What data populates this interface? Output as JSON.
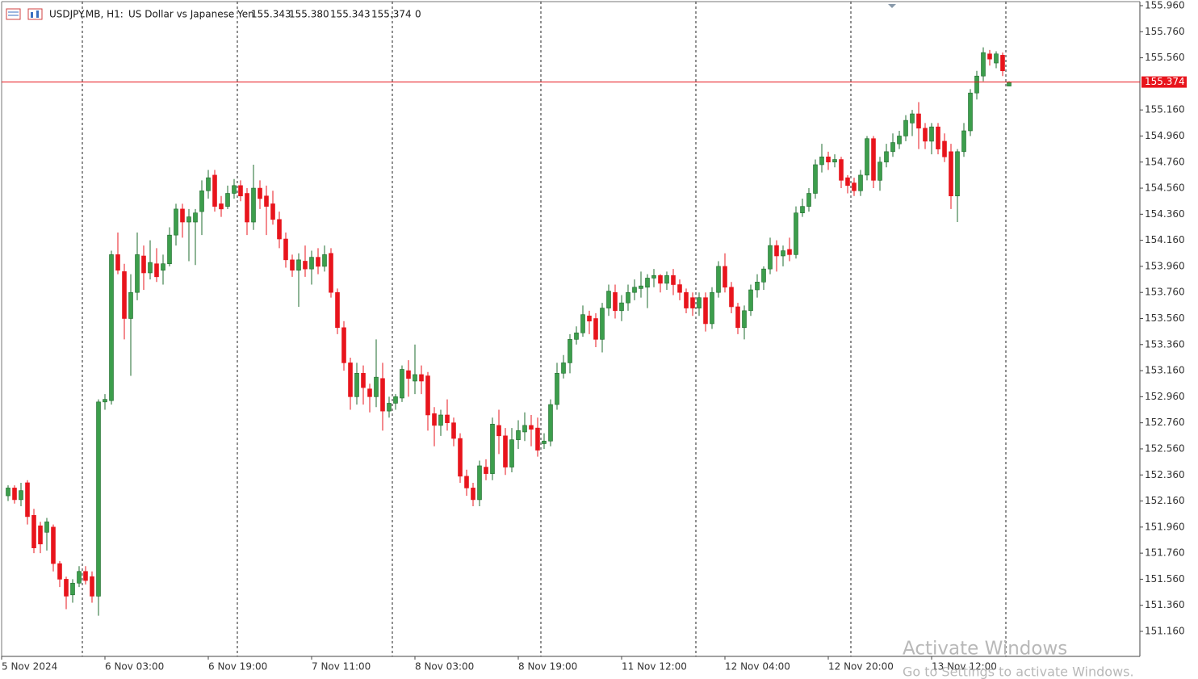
{
  "chart_data": {
    "type": "candlestick",
    "title": "USDJPY.MB, H1:",
    "subtitle": "US Dollar vs Japanese Yen",
    "last_bar_labels": [
      "155.343",
      "155.380",
      "155.343",
      "155.374"
    ],
    "tick_volume": 0,
    "watermark": [
      "Activate Windows",
      "Go to Settings to activate Windows."
    ],
    "up_color": "#3c9e4c",
    "up_edge": "#1e6b2c",
    "down_color": "#e8141c",
    "price_line_color": "#e8141c",
    "categories": [
      "5 Nov 2024",
      null,
      null,
      null,
      null,
      null,
      null,
      null,
      null,
      null,
      null,
      null,
      null,
      null,
      null,
      "6 Nov 03:00",
      null,
      null,
      null,
      null,
      null,
      null,
      null,
      null,
      null,
      null,
      null,
      null,
      null,
      null,
      null,
      "6 Nov 19:00",
      null,
      null,
      null,
      null,
      null,
      null,
      null,
      null,
      null,
      null,
      null,
      null,
      null,
      null,
      null,
      "7 Nov 11:00",
      null,
      null,
      null,
      null,
      null,
      null,
      null,
      null,
      null,
      null,
      null,
      null,
      null,
      null,
      null,
      "8 Nov 03:00",
      null,
      null,
      null,
      null,
      null,
      null,
      null,
      null,
      null,
      null,
      null,
      null,
      null,
      null,
      null,
      "8 Nov 19:00",
      null,
      null,
      null,
      null,
      null,
      null,
      null,
      null,
      null,
      null,
      null,
      null,
      null,
      null,
      null,
      "11 Nov 12:00",
      null,
      null,
      null,
      null,
      null,
      null,
      null,
      null,
      null,
      null,
      null,
      null,
      null,
      null,
      null,
      "12 Nov 04:00",
      null,
      null,
      null,
      null,
      null,
      null,
      null,
      null,
      null,
      null,
      null,
      null,
      null,
      null,
      null,
      "12 Nov 20:00",
      null,
      null,
      null,
      null,
      null,
      null,
      null,
      null,
      null,
      null,
      null,
      null,
      null,
      null,
      null,
      "13 Nov 12:00",
      null,
      null,
      null,
      null,
      null,
      null,
      null,
      null,
      null,
      null,
      null,
      null
    ],
    "open": [
      152.2,
      152.26,
      152.17,
      152.3,
      152.05,
      151.97,
      151.92,
      151.96,
      151.68,
      151.56,
      151.44,
      151.53,
      151.62,
      151.58,
      151.43,
      152.92,
      152.93,
      154.05,
      153.92,
      153.56,
      153.76,
      154.04,
      153.91,
      153.98,
      153.93,
      153.98,
      154.2,
      154.4,
      154.3,
      154.3,
      154.38,
      154.54,
      154.66,
      154.44,
      154.42,
      154.52,
      154.58,
      154.52,
      154.3,
      154.56,
      154.5,
      154.44,
      154.32,
      154.17,
      154.01,
      153.93,
      154.0,
      153.94,
      154.03,
      153.96,
      154.06,
      153.76,
      153.49,
      153.22,
      152.96,
      153.14,
      153.02,
      152.96,
      153.1,
      152.85,
      152.91,
      152.95,
      153.16,
      153.08,
      153.13,
      153.12,
      152.83,
      152.74,
      152.82,
      152.76,
      152.64,
      152.35,
      152.26,
      152.17,
      152.42,
      152.37,
      152.74,
      152.66,
      152.42,
      152.63,
      152.69,
      152.74,
      152.72,
      152.6,
      152.62,
      152.9,
      153.14,
      153.22,
      153.4,
      153.45,
      153.58,
      153.56,
      153.4,
      153.64,
      153.76,
      153.62,
      153.68,
      153.76,
      153.79,
      153.8,
      153.87,
      153.89,
      153.83,
      153.89,
      153.82,
      153.76,
      153.72,
      153.64,
      153.72,
      153.52,
      153.76,
      153.96,
      153.8,
      153.65,
      153.49,
      153.62,
      153.78,
      153.84,
      153.94,
      154.12,
      154.04,
      154.09,
      154.05,
      154.37,
      154.42,
      154.52,
      154.74,
      154.8,
      154.76,
      154.78,
      154.64,
      154.6,
      154.54,
      154.66,
      154.94,
      154.62,
      154.76,
      154.84,
      154.9,
      154.96,
      155.06,
      155.13,
      155.02,
      154.92,
      155.03,
      154.92,
      154.84,
      154.5,
      154.84,
      155.0,
      155.29,
      155.42,
      155.59,
      155.52,
      155.58,
      155.343
    ],
    "high": [
      152.28,
      152.28,
      152.3,
      152.32,
      152.1,
      152.0,
      152.03,
      151.98,
      151.7,
      151.58,
      151.56,
      151.66,
      151.66,
      151.62,
      152.94,
      152.98,
      154.08,
      154.22,
      153.98,
      153.9,
      154.22,
      154.12,
      154.16,
      154.1,
      154.05,
      154.26,
      154.44,
      154.44,
      154.4,
      154.4,
      154.62,
      154.7,
      154.7,
      154.5,
      154.58,
      154.63,
      154.62,
      154.56,
      154.74,
      154.62,
      154.58,
      154.54,
      154.38,
      154.22,
      154.05,
      154.06,
      154.12,
      154.08,
      154.1,
      154.12,
      154.1,
      153.79,
      153.54,
      153.26,
      153.22,
      153.2,
      153.06,
      153.4,
      153.22,
      152.96,
      152.98,
      153.2,
      153.24,
      153.36,
      153.2,
      153.15,
      152.88,
      152.86,
      152.94,
      152.8,
      152.68,
      152.4,
      152.3,
      152.47,
      152.48,
      152.8,
      152.86,
      152.72,
      152.72,
      152.78,
      152.84,
      152.82,
      152.8,
      152.68,
      152.94,
      153.22,
      153.28,
      153.44,
      153.5,
      153.66,
      153.62,
      153.6,
      153.68,
      153.82,
      153.82,
      153.74,
      153.82,
      153.86,
      153.92,
      153.9,
      153.94,
      153.9,
      153.92,
      153.94,
      153.86,
      153.79,
      153.76,
      153.76,
      153.76,
      153.8,
      154.0,
      154.06,
      153.84,
      153.68,
      153.66,
      153.82,
      153.9,
      153.96,
      154.18,
      154.16,
      154.12,
      154.18,
      154.42,
      154.48,
      154.56,
      154.78,
      154.9,
      154.84,
      154.82,
      154.8,
      154.66,
      154.64,
      154.7,
      154.96,
      154.96,
      154.8,
      154.9,
      154.98,
      155.0,
      155.12,
      155.16,
      155.22,
      155.06,
      155.06,
      155.06,
      154.98,
      154.9,
      154.86,
      155.06,
      155.32,
      155.46,
      155.64,
      155.62,
      155.61,
      155.6,
      155.38
    ],
    "low": [
      152.16,
      152.14,
      152.12,
      151.98,
      151.76,
      151.76,
      151.78,
      151.62,
      151.5,
      151.33,
      151.38,
      151.5,
      151.52,
      151.38,
      151.28,
      152.86,
      152.9,
      153.9,
      153.4,
      153.12,
      153.7,
      153.78,
      153.86,
      153.84,
      153.82,
      153.96,
      154.12,
      154.18,
      154.0,
      153.97,
      154.2,
      154.48,
      154.38,
      154.34,
      154.4,
      154.48,
      154.46,
      154.2,
      154.24,
      154.4,
      154.2,
      154.28,
      154.1,
      153.95,
      153.88,
      153.65,
      153.88,
      153.82,
      153.9,
      153.92,
      153.72,
      153.44,
      153.16,
      152.86,
      152.9,
      152.9,
      152.84,
      152.88,
      152.7,
      152.8,
      152.86,
      152.92,
      152.96,
      152.98,
      152.98,
      152.7,
      152.58,
      152.66,
      152.7,
      152.58,
      152.3,
      152.2,
      152.12,
      152.12,
      152.32,
      152.32,
      152.52,
      152.36,
      152.38,
      152.56,
      152.62,
      152.58,
      152.5,
      152.56,
      152.58,
      152.86,
      153.1,
      153.14,
      153.36,
      153.42,
      153.44,
      153.34,
      153.3,
      153.58,
      153.56,
      153.54,
      153.62,
      153.7,
      153.72,
      153.64,
      153.8,
      153.76,
      153.78,
      153.74,
      153.7,
      153.6,
      153.58,
      153.58,
      153.46,
      153.48,
      153.72,
      153.76,
      153.6,
      153.44,
      153.4,
      153.58,
      153.72,
      153.78,
      153.9,
      153.92,
      153.96,
      154.0,
      154.02,
      154.34,
      154.38,
      154.48,
      154.68,
      154.7,
      154.72,
      154.56,
      154.52,
      154.5,
      154.5,
      154.62,
      154.56,
      154.54,
      154.72,
      154.8,
      154.86,
      154.92,
      154.96,
      154.86,
      154.86,
      154.82,
      154.82,
      154.76,
      154.4,
      154.3,
      154.8,
      154.96,
      155.24,
      155.38,
      155.5,
      155.48,
      155.42,
      155.343
    ],
    "close": [
      152.26,
      152.17,
      152.24,
      152.04,
      151.8,
      151.83,
      152.0,
      151.68,
      151.56,
      151.43,
      151.53,
      151.62,
      151.55,
      151.43,
      152.92,
      152.94,
      154.05,
      153.93,
      153.56,
      153.76,
      154.05,
      153.91,
      153.99,
      153.88,
      153.98,
      154.2,
      154.4,
      154.3,
      154.34,
      154.37,
      154.54,
      154.64,
      154.42,
      154.4,
      154.52,
      154.58,
      154.5,
      154.3,
      154.56,
      154.48,
      154.42,
      154.32,
      154.17,
      154.01,
      153.93,
      154.01,
      153.94,
      154.03,
      153.96,
      154.05,
      153.76,
      153.49,
      153.22,
      152.96,
      153.14,
      153.03,
      152.96,
      153.11,
      152.85,
      152.91,
      152.96,
      153.17,
      153.1,
      153.13,
      153.08,
      152.82,
      152.74,
      152.82,
      152.76,
      152.64,
      152.35,
      152.26,
      152.17,
      152.43,
      152.37,
      152.75,
      152.66,
      152.42,
      152.63,
      152.7,
      152.74,
      152.71,
      152.55,
      152.62,
      152.9,
      153.14,
      153.22,
      153.4,
      153.45,
      153.59,
      153.54,
      153.4,
      153.64,
      153.77,
      153.62,
      153.68,
      153.76,
      153.8,
      153.81,
      153.87,
      153.89,
      153.83,
      153.89,
      153.82,
      153.76,
      153.64,
      153.64,
      153.72,
      153.52,
      153.76,
      153.96,
      153.8,
      153.65,
      153.49,
      153.62,
      153.78,
      153.84,
      153.94,
      154.12,
      154.04,
      154.08,
      154.05,
      154.37,
      154.42,
      154.52,
      154.74,
      154.8,
      154.76,
      154.78,
      154.62,
      154.58,
      154.54,
      154.66,
      154.94,
      154.62,
      154.76,
      154.84,
      154.91,
      154.96,
      155.08,
      155.13,
      155.02,
      154.92,
      155.03,
      154.86,
      154.8,
      154.5,
      154.84,
      155.0,
      155.29,
      155.42,
      155.6,
      155.55,
      155.59,
      155.46,
      155.374
    ],
    "ylim": [
      150.968,
      155.991
    ],
    "yticks": [
      {
        "value": 155.96,
        "label": "155.960"
      },
      {
        "value": 155.76,
        "label": "155.760"
      },
      {
        "value": 155.56,
        "label": "155.560"
      },
      {
        "value": 155.16,
        "label": "155.160"
      },
      {
        "value": 154.96,
        "label": "154.960"
      },
      {
        "value": 154.76,
        "label": "154.760"
      },
      {
        "value": 154.56,
        "label": "154.560"
      },
      {
        "value": 154.36,
        "label": "154.360"
      },
      {
        "value": 154.16,
        "label": "154.160"
      },
      {
        "value": 153.96,
        "label": "153.960"
      },
      {
        "value": 153.76,
        "label": "153.760"
      },
      {
        "value": 153.56,
        "label": "153.560"
      },
      {
        "value": 153.36,
        "label": "153.360"
      },
      {
        "value": 153.16,
        "label": "153.160"
      },
      {
        "value": 152.96,
        "label": "152.960"
      },
      {
        "value": 152.76,
        "label": "152.760"
      },
      {
        "value": 152.56,
        "label": "152.560"
      },
      {
        "value": 152.36,
        "label": "152.360"
      },
      {
        "value": 152.16,
        "label": "152.160"
      },
      {
        "value": 151.96,
        "label": "151.960"
      },
      {
        "value": 151.76,
        "label": "151.760"
      },
      {
        "value": 151.56,
        "label": "151.560"
      },
      {
        "value": 151.36,
        "label": "151.360"
      },
      {
        "value": 151.16,
        "label": "151.160"
      }
    ],
    "grid": true
  }
}
